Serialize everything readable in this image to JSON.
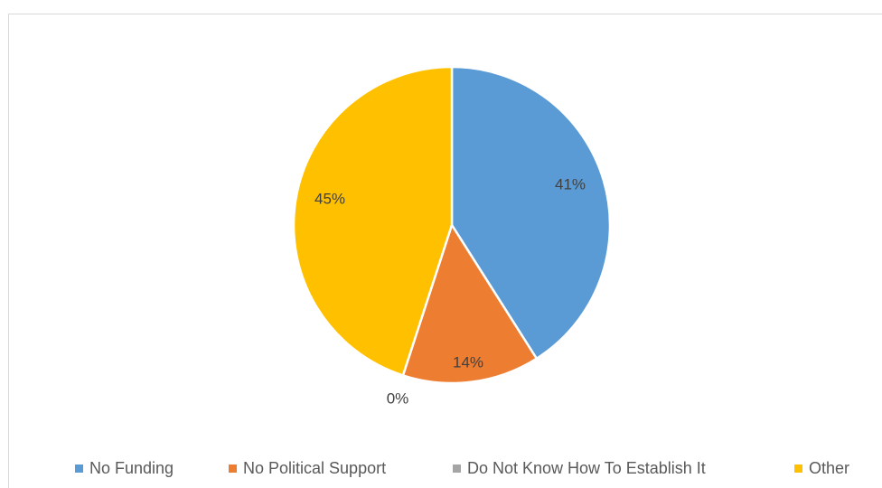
{
  "chart_data": {
    "type": "pie",
    "title": "",
    "slices": [
      {
        "label": "No Funding",
        "value": 41,
        "display": "41%",
        "color": "#5b9bd5"
      },
      {
        "label": "No Political Support",
        "value": 14,
        "display": "14%",
        "color": "#ed7d31"
      },
      {
        "label": "Do Not Know How To Establish It",
        "value": 0,
        "display": "0%",
        "color": "#a5a5a5"
      },
      {
        "label": "Other",
        "value": 45,
        "display": "45%",
        "color": "#ffc000"
      }
    ],
    "legend_position": "bottom",
    "data_labels": true
  }
}
